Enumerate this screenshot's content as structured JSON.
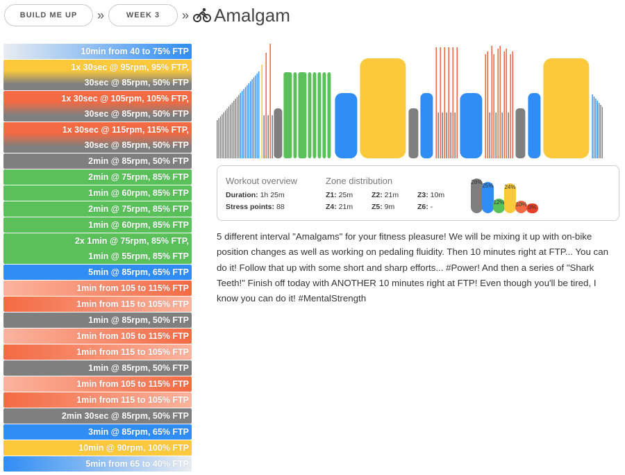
{
  "breadcrumb": {
    "items": [
      "BUILD ME UP",
      "WEEK 3"
    ],
    "separator": "»",
    "icon": "cyclist-icon",
    "title": "Amalgam"
  },
  "colors": {
    "gray": "#7f7f7f",
    "green": "#59c05a",
    "blue": "#2f8df5",
    "yellow": "#fcc93c",
    "orange": "#f36a43",
    "red": "#e7412b",
    "light": "#e9ecf1"
  },
  "steps": [
    {
      "lines": [
        "10min from 40 to 75% FTP"
      ],
      "bg": "linear-gradient(90deg,#e9ecf1,#2f8df5)"
    },
    {
      "lines": [
        "1x 30sec @ 95rpm, 95% FTP,",
        "30sec @ 85rpm, 50% FTP"
      ],
      "bg": "linear-gradient(180deg,#fcc93c 0%,#fcc93c 35%,#7f7f7f 80%)"
    },
    {
      "lines": [
        "1x 30sec @ 105rpm, 105% FTP,",
        "30sec @ 85rpm, 50% FTP"
      ],
      "bg": "linear-gradient(180deg,#f36a43 0%,#f36a43 35%,#7f7f7f 80%)"
    },
    {
      "lines": [
        "1x 30sec @ 115rpm, 115% FTP,",
        "30sec @ 85rpm, 50% FTP"
      ],
      "bg": "linear-gradient(180deg,#f36a43 0%,#f36a43 35%,#7f7f7f 80%)"
    },
    {
      "lines": [
        "2min @ 85rpm, 50% FTP"
      ],
      "bg": "#7f7f7f"
    },
    {
      "lines": [
        "2min @ 75rpm, 85% FTP"
      ],
      "bg": "#59c05a"
    },
    {
      "lines": [
        "1min @ 60rpm, 85% FTP"
      ],
      "bg": "#59c05a"
    },
    {
      "lines": [
        "2min @ 75rpm, 85% FTP"
      ],
      "bg": "#59c05a"
    },
    {
      "lines": [
        "1min @ 60rpm, 85% FTP"
      ],
      "bg": "#59c05a"
    },
    {
      "lines": [
        "2x 1min @ 75rpm, 85% FTP,",
        "1min @ 55rpm, 85% FTP"
      ],
      "bg": "#59c05a"
    },
    {
      "lines": [
        "5min @ 85rpm, 65% FTP"
      ],
      "bg": "#2f8df5"
    },
    {
      "lines": [
        "1min from 105 to 115% FTP"
      ],
      "bg": "linear-gradient(90deg,#fbb39e,#f36a43)"
    },
    {
      "lines": [
        "1min from 115 to 105% FTP"
      ],
      "bg": "linear-gradient(90deg,#f36a43,#fbb39e)"
    },
    {
      "lines": [
        "1min @ 85rpm, 50% FTP"
      ],
      "bg": "#7f7f7f"
    },
    {
      "lines": [
        "1min from 105 to 115% FTP"
      ],
      "bg": "linear-gradient(90deg,#fbb39e,#f36a43)"
    },
    {
      "lines": [
        "1min from 115 to 105% FTP"
      ],
      "bg": "linear-gradient(90deg,#f36a43,#fbb39e)"
    },
    {
      "lines": [
        "1min @ 85rpm, 50% FTP"
      ],
      "bg": "#7f7f7f"
    },
    {
      "lines": [
        "1min from 105 to 115% FTP"
      ],
      "bg": "linear-gradient(90deg,#fbb39e,#f36a43)"
    },
    {
      "lines": [
        "1min from 115 to 105% FTP"
      ],
      "bg": "linear-gradient(90deg,#f36a43,#fbb39e)"
    },
    {
      "lines": [
        "2min 30sec @ 85rpm, 50% FTP"
      ],
      "bg": "#7f7f7f"
    },
    {
      "lines": [
        "3min @ 85rpm, 65% FTP"
      ],
      "bg": "#2f8df5"
    },
    {
      "lines": [
        "10min @ 90rpm, 100% FTP"
      ],
      "bg": "#fcc93c"
    },
    {
      "lines": [
        "5min from 65 to 40% FTP"
      ],
      "bg": "linear-gradient(90deg,#2f8df5,#e9ecf1)"
    }
  ],
  "overview": {
    "heading": "Workout overview",
    "duration_label": "Duration:",
    "duration_value": "1h 25m",
    "stress_label": "Stress points:",
    "stress_value": "88"
  },
  "zones": {
    "heading": "Zone distribution",
    "items": [
      {
        "label": "Z1:",
        "value": "25m"
      },
      {
        "label": "Z2:",
        "value": "21m"
      },
      {
        "label": "Z3:",
        "value": "10m"
      },
      {
        "label": "Z4:",
        "value": "21m"
      },
      {
        "label": "Z5:",
        "value": "9m"
      },
      {
        "label": "Z6:",
        "value": "-"
      }
    ],
    "bars": [
      {
        "pct": "28%",
        "value": 28,
        "color": "#7f7f7f"
      },
      {
        "pct": "25%",
        "value": 25,
        "color": "#2f8df5"
      },
      {
        "pct": "12%",
        "value": 12,
        "color": "#59c05a"
      },
      {
        "pct": "24%",
        "value": 24,
        "color": "#fcc93c"
      },
      {
        "pct": "10%",
        "value": 10,
        "color": "#f36a43"
      },
      {
        "pct": "0%",
        "value": 0,
        "color": "#e7412b"
      }
    ]
  },
  "description": "5 different interval \"Amalgams\" for your fitness pleasure! We will be mixing it up with on-bike position changes as well as working on pedaling fluidity. Then 10 minutes right at FTP... You can do it! Follow that up with some short and sharp efforts... #Power! And then a series of \"Shark Teeth!\" Finish off today with ANOTHER 10 minutes right at FTP! Even though you'll be tired, I know you can do it! #MentalStrength"
}
